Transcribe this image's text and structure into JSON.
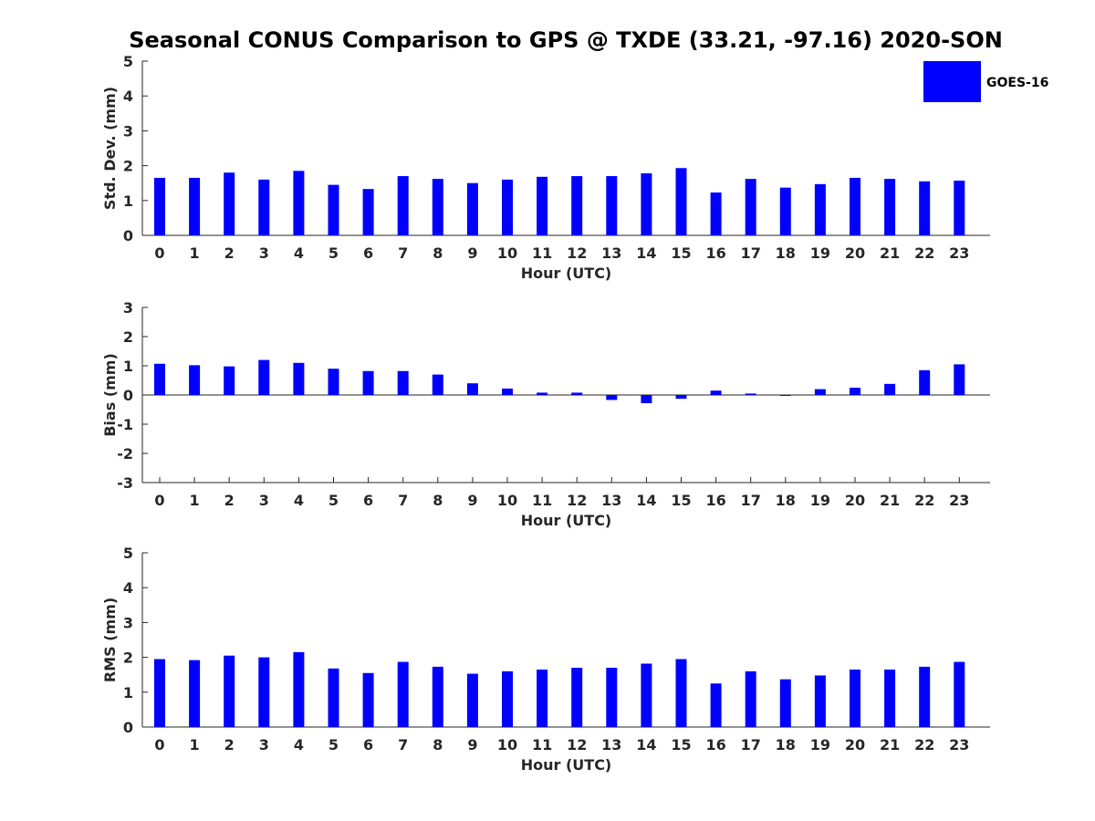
{
  "title": "Seasonal CONUS Comparison to GPS @ TXDE (33.21, -97.16) 2020-SON",
  "legend": {
    "label": "GOES-16",
    "color": "#0000ff",
    "placement": "top-right"
  },
  "chart_data": [
    {
      "type": "bar",
      "xlabel": "Hour (UTC)",
      "ylabel": "Std. Dev. (mm)",
      "ylim": [
        0,
        5
      ],
      "yticks": [
        "0",
        "1",
        "2",
        "3",
        "4",
        "5"
      ],
      "categories": [
        "0",
        "1",
        "2",
        "3",
        "4",
        "5",
        "6",
        "7",
        "8",
        "9",
        "10",
        "11",
        "12",
        "13",
        "14",
        "15",
        "16",
        "17",
        "18",
        "19",
        "20",
        "21",
        "22",
        "23"
      ],
      "series": [
        {
          "name": "GOES-16",
          "color": "#0000ff",
          "values": [
            1.65,
            1.65,
            1.8,
            1.6,
            1.85,
            1.45,
            1.33,
            1.7,
            1.62,
            1.5,
            1.6,
            1.68,
            1.7,
            1.7,
            1.78,
            1.93,
            1.23,
            1.62,
            1.37,
            1.47,
            1.65,
            1.62,
            1.55,
            1.57
          ]
        }
      ]
    },
    {
      "type": "bar",
      "xlabel": "Hour (UTC)",
      "ylabel": "Bias (mm)",
      "ylim": [
        -3,
        3
      ],
      "yticks": [
        "-3",
        "-2",
        "-1",
        "0",
        "1",
        "2",
        "3"
      ],
      "categories": [
        "0",
        "1",
        "2",
        "3",
        "4",
        "5",
        "6",
        "7",
        "8",
        "9",
        "10",
        "11",
        "12",
        "13",
        "14",
        "15",
        "16",
        "17",
        "18",
        "19",
        "20",
        "21",
        "22",
        "23"
      ],
      "series": [
        {
          "name": "GOES-16",
          "color": "#0000ff",
          "values": [
            1.07,
            1.02,
            0.98,
            1.2,
            1.1,
            0.9,
            0.82,
            0.82,
            0.7,
            0.4,
            0.22,
            0.08,
            0.08,
            -0.17,
            -0.28,
            -0.13,
            0.15,
            0.05,
            -0.03,
            0.2,
            0.25,
            0.38,
            0.85,
            1.05
          ]
        }
      ]
    },
    {
      "type": "bar",
      "xlabel": "Hour (UTC)",
      "ylabel": "RMS (mm)",
      "ylim": [
        0,
        5
      ],
      "yticks": [
        "0",
        "1",
        "2",
        "3",
        "4",
        "5"
      ],
      "categories": [
        "0",
        "1",
        "2",
        "3",
        "4",
        "5",
        "6",
        "7",
        "8",
        "9",
        "10",
        "11",
        "12",
        "13",
        "14",
        "15",
        "16",
        "17",
        "18",
        "19",
        "20",
        "21",
        "22",
        "23"
      ],
      "series": [
        {
          "name": "GOES-16",
          "color": "#0000ff",
          "values": [
            1.95,
            1.92,
            2.05,
            2.0,
            2.15,
            1.68,
            1.55,
            1.87,
            1.73,
            1.53,
            1.6,
            1.65,
            1.7,
            1.7,
            1.82,
            1.95,
            1.25,
            1.6,
            1.37,
            1.48,
            1.65,
            1.65,
            1.73,
            1.87
          ]
        }
      ]
    }
  ]
}
